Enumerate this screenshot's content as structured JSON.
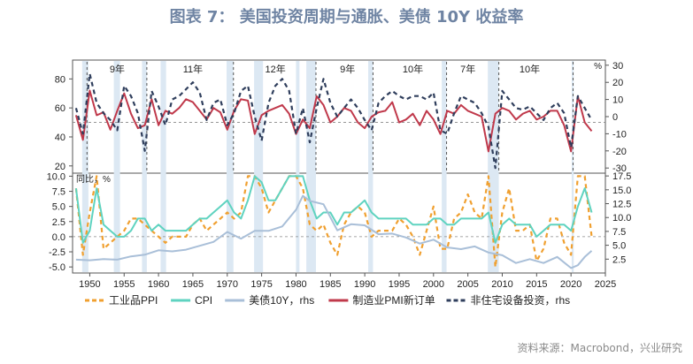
{
  "title": "图表 7： 美国投资周期与通胀、美债 10Y 收益率",
  "source": "资料来源：Macrobond，兴业研究",
  "chart_data": [
    {
      "type": "line",
      "panel": "top",
      "y_left_ticks": [
        20,
        40,
        60,
        80
      ],
      "y_right_ticks": [
        -30,
        -20,
        -10,
        0,
        10,
        20,
        30
      ],
      "y_right_unit": "%",
      "ylim_left": [
        15,
        93
      ],
      "ylim_right": [
        -33,
        33
      ],
      "zero_ref_left": 50,
      "cycle_labels": [
        {
          "text": "9年",
          "year": 1954
        },
        {
          "text": "11年",
          "year": 1965
        },
        {
          "text": "12年",
          "year": 1977
        },
        {
          "text": "9年",
          "year": 1987.5
        },
        {
          "text": "10年",
          "year": 1997
        },
        {
          "text": "7年",
          "year": 2005
        },
        {
          "text": "10年",
          "year": 2014
        }
      ],
      "series": [
        {
          "name": "制造业PMI新订单",
          "axis": "left",
          "color": "#c0394b",
          "x": [
            1948,
            1949,
            1950,
            1951,
            1952,
            1953,
            1954,
            1955,
            1956,
            1957,
            1958,
            1959,
            1960,
            1961,
            1962,
            1963,
            1964,
            1965,
            1966,
            1967,
            1968,
            1969,
            1970,
            1971,
            1972,
            1973,
            1974,
            1975,
            1976,
            1977,
            1978,
            1979,
            1980,
            1981,
            1982,
            1983,
            1984,
            1985,
            1986,
            1987,
            1988,
            1989,
            1990,
            1991,
            1992,
            1993,
            1994,
            1995,
            1996,
            1997,
            1998,
            1999,
            2000,
            2001,
            2002,
            2003,
            2004,
            2005,
            2006,
            2007,
            2008,
            2009,
            2010,
            2011,
            2012,
            2013,
            2014,
            2015,
            2016,
            2017,
            2018,
            2019,
            2020,
            2021,
            2022,
            2023
          ],
          "y": [
            55,
            38,
            72,
            55,
            57,
            45,
            58,
            70,
            56,
            46,
            48,
            66,
            48,
            58,
            56,
            60,
            66,
            64,
            58,
            52,
            60,
            57,
            45,
            58,
            66,
            65,
            42,
            55,
            58,
            60,
            62,
            56,
            42,
            52,
            46,
            68,
            62,
            50,
            54,
            60,
            58,
            50,
            46,
            54,
            57,
            58,
            64,
            50,
            52,
            56,
            48,
            58,
            52,
            42,
            58,
            56,
            62,
            58,
            56,
            54,
            30,
            56,
            60,
            58,
            52,
            56,
            58,
            52,
            54,
            58,
            58,
            48,
            30,
            68,
            50,
            44
          ]
        },
        {
          "name": "非住宅设备投资，rhs",
          "axis": "right",
          "color": "#2f3e5c",
          "dashed": true,
          "x": [
            1948,
            1949,
            1950,
            1951,
            1952,
            1953,
            1954,
            1955,
            1956,
            1957,
            1958,
            1959,
            1960,
            1961,
            1962,
            1963,
            1964,
            1965,
            1966,
            1967,
            1968,
            1969,
            1970,
            1971,
            1972,
            1973,
            1974,
            1975,
            1976,
            1977,
            1978,
            1979,
            1980,
            1981,
            1982,
            1983,
            1984,
            1985,
            1986,
            1987,
            1988,
            1989,
            1990,
            1991,
            1992,
            1993,
            1994,
            1995,
            1996,
            1997,
            1998,
            1999,
            2000,
            2001,
            2002,
            2003,
            2004,
            2005,
            2006,
            2007,
            2008,
            2009,
            2010,
            2011,
            2012,
            2013,
            2014,
            2015,
            2016,
            2017,
            2018,
            2019,
            2020,
            2021,
            2022,
            2023
          ],
          "y": [
            5,
            -10,
            25,
            8,
            2,
            -2,
            -8,
            18,
            12,
            2,
            -20,
            15,
            6,
            -5,
            10,
            12,
            16,
            20,
            14,
            -2,
            8,
            10,
            -5,
            2,
            15,
            18,
            0,
            -14,
            8,
            18,
            22,
            15,
            -10,
            5,
            -15,
            5,
            22,
            8,
            0,
            5,
            10,
            5,
            -2,
            -8,
            8,
            12,
            15,
            12,
            10,
            12,
            12,
            10,
            14,
            -8,
            -10,
            2,
            12,
            10,
            8,
            2,
            -6,
            -30,
            15,
            10,
            5,
            4,
            6,
            2,
            -2,
            5,
            8,
            2,
            -18,
            12,
            5,
            -2
          ]
        }
      ]
    },
    {
      "type": "line",
      "panel": "bottom",
      "y_left_ticks": [
        -5.0,
        -2.5,
        0.0,
        2.5,
        5.0,
        7.5,
        10.0
      ],
      "y_left_labels": [
        "-5.0",
        "-2.5",
        "0.0",
        "2.5",
        "5.0",
        "7.5",
        "10.0"
      ],
      "y_right_ticks": [
        2.5,
        5.0,
        7.5,
        10.0,
        12.5,
        15.0,
        17.5
      ],
      "y_right_labels": [
        "2.5",
        "5.0",
        "7.5",
        "10.0",
        "12.5",
        "15.0",
        "17.5"
      ],
      "y_left_unit": "同比，%",
      "ylim_left": [
        -6,
        10.5
      ],
      "ylim_right": [
        0,
        18
      ],
      "series": [
        {
          "name": "工业品PPI",
          "axis": "left",
          "color": "#f0a030",
          "dashed": true,
          "x": [
            1948,
            1949,
            1950,
            1951,
            1952,
            1953,
            1954,
            1955,
            1956,
            1957,
            1958,
            1959,
            1960,
            1961,
            1962,
            1963,
            1964,
            1965,
            1966,
            1967,
            1968,
            1969,
            1970,
            1971,
            1972,
            1973,
            1974,
            1975,
            1976,
            1977,
            1978,
            1979,
            1980,
            1981,
            1982,
            1983,
            1984,
            1985,
            1986,
            1987,
            1988,
            1989,
            1990,
            1991,
            1992,
            1993,
            1994,
            1995,
            1996,
            1997,
            1998,
            1999,
            2000,
            2001,
            2002,
            2003,
            2004,
            2005,
            2006,
            2007,
            2008,
            2009,
            2010,
            2011,
            2012,
            2013,
            2014,
            2015,
            2016,
            2017,
            2018,
            2019,
            2020,
            2021,
            2022,
            2023
          ],
          "y": [
            8,
            -3,
            4,
            10,
            -2,
            -1,
            0,
            1,
            3,
            3,
            2,
            1,
            0,
            -1,
            0,
            0,
            0,
            2,
            3,
            1,
            2,
            3,
            4,
            3,
            4,
            10,
            10,
            8,
            4,
            6,
            8,
            10,
            10,
            8,
            2,
            1,
            2,
            -1,
            -3,
            2,
            4,
            5,
            4,
            0,
            1,
            1,
            1,
            3,
            2,
            0,
            -3,
            1,
            5,
            -2,
            -2,
            3,
            4,
            7,
            4,
            3,
            10,
            -5,
            4,
            8,
            1,
            1,
            2,
            -4,
            -2,
            3,
            3,
            -1,
            -3,
            10,
            10,
            0
          ]
        },
        {
          "name": "CPI",
          "axis": "left",
          "color": "#5fd3c0",
          "x": [
            1948,
            1949,
            1950,
            1951,
            1952,
            1953,
            1954,
            1955,
            1956,
            1957,
            1958,
            1959,
            1960,
            1961,
            1962,
            1963,
            1964,
            1965,
            1966,
            1967,
            1968,
            1969,
            1970,
            1971,
            1972,
            1973,
            1974,
            1975,
            1976,
            1977,
            1978,
            1979,
            1980,
            1981,
            1982,
            1983,
            1984,
            1985,
            1986,
            1987,
            1988,
            1989,
            1990,
            1991,
            1992,
            1993,
            1994,
            1995,
            1996,
            1997,
            1998,
            1999,
            2000,
            2001,
            2002,
            2003,
            2004,
            2005,
            2006,
            2007,
            2008,
            2009,
            2010,
            2011,
            2012,
            2013,
            2014,
            2015,
            2016,
            2017,
            2018,
            2019,
            2020,
            2021,
            2022,
            2023
          ],
          "y": [
            8,
            -1,
            1,
            8,
            2,
            1,
            0,
            0,
            1,
            3,
            3,
            1,
            2,
            1,
            1,
            1,
            1,
            2,
            3,
            3,
            4,
            5,
            6,
            4,
            3,
            6,
            10,
            9,
            6,
            6,
            8,
            10,
            10,
            10,
            6,
            3,
            4,
            4,
            2,
            4,
            4,
            5,
            6,
            4,
            3,
            3,
            3,
            3,
            3,
            2,
            2,
            2,
            3,
            3,
            2,
            2,
            3,
            3,
            3,
            3,
            4,
            -1,
            2,
            3,
            2,
            2,
            2,
            0,
            1,
            2,
            2,
            2,
            1,
            5,
            8,
            4
          ]
        },
        {
          "name": "美债10Y，rhs",
          "axis": "right",
          "color": "#a9bfd8",
          "x": [
            1948,
            1950,
            1952,
            1954,
            1956,
            1958,
            1960,
            1962,
            1964,
            1966,
            1968,
            1970,
            1972,
            1974,
            1976,
            1978,
            1980,
            1981,
            1982,
            1984,
            1986,
            1988,
            1990,
            1992,
            1994,
            1996,
            1998,
            2000,
            2002,
            2004,
            2006,
            2008,
            2010,
            2012,
            2014,
            2016,
            2018,
            2020,
            2021,
            2022,
            2023
          ],
          "y": [
            2.4,
            2.3,
            2.5,
            2.4,
            3.0,
            3.3,
            4.1,
            3.9,
            4.2,
            4.9,
            5.6,
            7.4,
            6.2,
            7.6,
            7.6,
            8.4,
            11.4,
            13.9,
            13.0,
            12.4,
            7.7,
            8.8,
            8.6,
            7.0,
            7.1,
            6.4,
            5.3,
            6.0,
            4.6,
            4.3,
            4.8,
            3.7,
            3.2,
            1.8,
            2.5,
            1.8,
            2.9,
            0.9,
            1.4,
            2.9,
            4.0
          ]
        }
      ]
    }
  ],
  "x_axis": {
    "ticks": [
      1950,
      1955,
      1960,
      1965,
      1970,
      1975,
      1980,
      1985,
      1990,
      1995,
      2000,
      2005,
      2010,
      2015,
      2020,
      2025
    ],
    "labels": [
      "1950",
      "1955",
      "1960",
      "1965",
      "1970",
      "1975",
      "1980",
      "1985",
      "1990",
      "1995",
      "2000",
      "2005",
      "2010",
      "2015",
      "2020",
      "2025"
    ],
    "range": [
      1947.5,
      2025
    ]
  },
  "recessions": [
    [
      1948.9,
      1949.8
    ],
    [
      1953.5,
      1954.4
    ],
    [
      1957.6,
      1958.3
    ],
    [
      1960.3,
      1961.1
    ],
    [
      1969.9,
      1970.9
    ],
    [
      1973.9,
      1975.2
    ],
    [
      1980.0,
      1980.5
    ],
    [
      1981.5,
      1982.9
    ],
    [
      1990.5,
      1991.2
    ],
    [
      2001.2,
      2001.9
    ],
    [
      2007.9,
      2009.5
    ],
    [
      2020.1,
      2020.4
    ]
  ],
  "cycle_lines": [
    1949.6,
    1958.3,
    1970.9,
    1982.9,
    1991.2,
    2001.9,
    2009.5,
    2020.3
  ],
  "legend": [
    {
      "label": "工业品PPI",
      "color": "#f0a030",
      "dashed": true
    },
    {
      "label": "CPI",
      "color": "#5fd3c0",
      "dashed": false
    },
    {
      "label": "美债10Y，rhs",
      "color": "#a9bfd8",
      "dashed": false
    },
    {
      "label": "制造业PMI新订单",
      "color": "#c0394b",
      "dashed": false
    },
    {
      "label": "非住宅设备投资，rhs",
      "color": "#2f3e5c",
      "dashed": true
    }
  ],
  "colors": {
    "recession": "#dce8f3",
    "grid": "#c9c9c9",
    "axis": "#555555",
    "title": "#6f84a3"
  }
}
